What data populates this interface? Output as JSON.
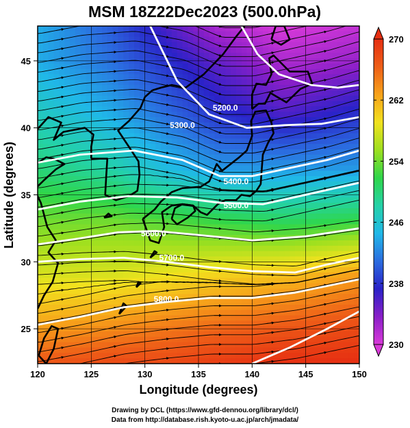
{
  "title": "MSM 18Z22Dec2023 (500.0hPa)",
  "credits": {
    "line1": "Drawing by DCL (https://www.gfd-dennou.org/library/dcl/)",
    "line2": "Data from http://database.rish.kyoto-u.ac.jp/arch/jmadata/"
  },
  "colors": {
    "scale": [
      "#d93ad9",
      "#8a1fc8",
      "#2a22c8",
      "#2b6de0",
      "#20b8e8",
      "#24d2a8",
      "#2fd64a",
      "#9ee01f",
      "#f2e21e",
      "#f7a21a",
      "#ee5f18",
      "#e62f12"
    ],
    "contour": "#ffffff",
    "streamline": "#000000",
    "coast": "#000000"
  },
  "chart_data": {
    "type": "heatmap",
    "title": "MSM 18Z22Dec2023 (500.0hPa)",
    "xlabel": "Longitude (degrees)",
    "ylabel": "Latitude  (degrees)",
    "xlim": [
      120,
      150
    ],
    "ylim": [
      22.4,
      47.6
    ],
    "xticks": [
      120,
      125,
      130,
      135,
      140,
      145,
      150
    ],
    "yticks": [
      25,
      30,
      35,
      40,
      45
    ],
    "colorbar": {
      "min": 230,
      "max": 270,
      "ticks": [
        230,
        238,
        246,
        254,
        262,
        270
      ]
    },
    "contours": [
      {
        "level": 5200,
        "label": "5200.0",
        "points": [
          [
            139.0,
            47.6
          ],
          [
            140.5,
            45.5
          ],
          [
            142.5,
            44.0
          ],
          [
            145.5,
            43.2
          ],
          [
            148.0,
            43.0
          ],
          [
            150.0,
            43.2
          ]
        ],
        "label_at": [
          137.5,
          41.5
        ]
      },
      {
        "level": 5300,
        "label": "5300.0",
        "points": [
          [
            130.5,
            47.6
          ],
          [
            133.0,
            43.5
          ],
          [
            136.0,
            41.0
          ],
          [
            139.5,
            40.0
          ],
          [
            143.0,
            40.2
          ],
          [
            146.5,
            40.3
          ],
          [
            150.0,
            40.8
          ]
        ],
        "label_at": [
          133.5,
          40.2
        ]
      },
      {
        "level": 5400,
        "label": "5400.0",
        "points": [
          [
            120.0,
            37.4
          ],
          [
            124.0,
            38.0
          ],
          [
            129.0,
            38.3
          ],
          [
            133.5,
            37.6
          ],
          [
            137.0,
            36.4
          ],
          [
            140.0,
            36.4
          ],
          [
            143.5,
            37.0
          ],
          [
            147.0,
            37.6
          ],
          [
            150.0,
            38.3
          ]
        ],
        "label_at": [
          138.5,
          36.0
        ]
      },
      {
        "level": 5500,
        "label": "5500.0",
        "points": [
          [
            120.0,
            33.9
          ],
          [
            124.0,
            34.5
          ],
          [
            128.5,
            34.9
          ],
          [
            133.0,
            34.8
          ],
          [
            137.0,
            34.4
          ],
          [
            141.0,
            34.3
          ],
          [
            145.0,
            35.0
          ],
          [
            150.0,
            35.9
          ]
        ],
        "label_at": [
          138.5,
          34.2
        ]
      },
      {
        "level": 5600,
        "label": "5600.0",
        "points": [
          [
            120.0,
            31.3
          ],
          [
            123.5,
            31.7
          ],
          [
            127.5,
            32.2
          ],
          [
            131.0,
            32.3
          ],
          [
            135.0,
            32.0
          ],
          [
            140.0,
            31.6
          ],
          [
            145.0,
            31.9
          ],
          [
            150.0,
            32.5
          ]
        ],
        "label_at": [
          130.8,
          32.1
        ]
      },
      {
        "level": 5700,
        "label": "5700.0",
        "points": [
          [
            120.0,
            30.0
          ],
          [
            124.0,
            30.2
          ],
          [
            128.0,
            30.3
          ],
          [
            132.0,
            30.0
          ],
          [
            136.0,
            29.6
          ],
          [
            140.0,
            29.3
          ],
          [
            144.0,
            29.2
          ],
          [
            147.0,
            29.8
          ],
          [
            150.0,
            30.3
          ]
        ],
        "label_at": [
          132.5,
          30.3
        ]
      },
      {
        "level": 5800,
        "label": "5800.0",
        "points": [
          [
            120.0,
            25.3
          ],
          [
            124.0,
            25.9
          ],
          [
            128.0,
            26.6
          ],
          [
            132.0,
            27.0
          ],
          [
            136.0,
            27.3
          ],
          [
            140.0,
            27.3
          ],
          [
            144.0,
            27.7
          ],
          [
            150.0,
            28.7
          ]
        ],
        "label_at": [
          132.0,
          27.2
        ]
      },
      {
        "level": 5900,
        "label": "",
        "points": [
          [
            140.0,
            22.4
          ],
          [
            143.5,
            23.6
          ],
          [
            147.0,
            25.0
          ],
          [
            150.0,
            26.3
          ]
        ],
        "label_at": null
      }
    ],
    "temperature_field": [
      {
        "lat": 47.6,
        "lon_values": [
          [
            120,
            244
          ],
          [
            127,
            240
          ],
          [
            132,
            236
          ],
          [
            137,
            232
          ],
          [
            143,
            230
          ],
          [
            150,
            231
          ]
        ]
      },
      {
        "lat": 45.0,
        "lon_values": [
          [
            120,
            244
          ],
          [
            127,
            241
          ],
          [
            132,
            238
          ],
          [
            137,
            235
          ],
          [
            143,
            232
          ],
          [
            150,
            233
          ]
        ]
      },
      {
        "lat": 41.0,
        "lon_values": [
          [
            120,
            247
          ],
          [
            127,
            244
          ],
          [
            132,
            241
          ],
          [
            137,
            238
          ],
          [
            143,
            236
          ],
          [
            150,
            238
          ]
        ]
      },
      {
        "lat": 37.0,
        "lon_values": [
          [
            120,
            250
          ],
          [
            127,
            248
          ],
          [
            132,
            245
          ],
          [
            137,
            243
          ],
          [
            143,
            243
          ],
          [
            150,
            243
          ]
        ]
      },
      {
        "lat": 33.0,
        "lon_values": [
          [
            120,
            254
          ],
          [
            127,
            254
          ],
          [
            132,
            253
          ],
          [
            137,
            252
          ],
          [
            143,
            251
          ],
          [
            150,
            252
          ]
        ]
      },
      {
        "lat": 29.0,
        "lon_values": [
          [
            120,
            258
          ],
          [
            127,
            258
          ],
          [
            132,
            259
          ],
          [
            137,
            260
          ],
          [
            143,
            261
          ],
          [
            150,
            263
          ]
        ]
      },
      {
        "lat": 25.0,
        "lon_values": [
          [
            120,
            263
          ],
          [
            127,
            264
          ],
          [
            132,
            265
          ],
          [
            137,
            266
          ],
          [
            143,
            267
          ],
          [
            150,
            268
          ]
        ]
      },
      {
        "lat": 22.4,
        "lon_values": [
          [
            120,
            267
          ],
          [
            127,
            268
          ],
          [
            132,
            268
          ],
          [
            137,
            269
          ],
          [
            143,
            270
          ],
          [
            150,
            270
          ]
        ]
      }
    ],
    "coastlines": [
      {
        "name": "kyushu-honshu",
        "points": [
          [
            129.8,
            33.2
          ],
          [
            130.5,
            31.6
          ],
          [
            131.3,
            31.4
          ],
          [
            131.8,
            32.6
          ],
          [
            131.6,
            33.7
          ],
          [
            132.5,
            34.2
          ],
          [
            133.5,
            34.3
          ],
          [
            134.5,
            34.2
          ],
          [
            135.2,
            33.7
          ],
          [
            135.8,
            33.5
          ],
          [
            136.8,
            34.3
          ],
          [
            137.5,
            34.6
          ],
          [
            138.5,
            34.6
          ],
          [
            139.0,
            35.0
          ],
          [
            139.8,
            34.9
          ],
          [
            140.4,
            35.3
          ],
          [
            140.8,
            35.8
          ],
          [
            140.9,
            36.9
          ],
          [
            141.0,
            38.0
          ],
          [
            141.5,
            38.9
          ],
          [
            142.0,
            39.6
          ],
          [
            141.8,
            40.4
          ],
          [
            141.3,
            41.3
          ],
          [
            140.3,
            41.2
          ],
          [
            139.9,
            40.5
          ],
          [
            140.0,
            39.4
          ],
          [
            139.5,
            38.3
          ],
          [
            138.8,
            37.8
          ],
          [
            137.2,
            36.8
          ],
          [
            136.7,
            37.3
          ],
          [
            136.0,
            36.0
          ],
          [
            135.2,
            35.6
          ],
          [
            133.5,
            35.5
          ],
          [
            132.5,
            35.2
          ],
          [
            131.5,
            34.5
          ],
          [
            130.9,
            33.9
          ],
          [
            129.8,
            33.2
          ]
        ]
      },
      {
        "name": "shikoku",
        "points": [
          [
            132.5,
            33.2
          ],
          [
            133.0,
            32.8
          ],
          [
            134.0,
            33.3
          ],
          [
            134.7,
            33.8
          ],
          [
            134.5,
            34.2
          ],
          [
            133.5,
            34.3
          ],
          [
            132.8,
            34.0
          ],
          [
            132.5,
            33.2
          ]
        ]
      },
      {
        "name": "hokkaido",
        "points": [
          [
            140.0,
            41.4
          ],
          [
            140.6,
            41.8
          ],
          [
            141.2,
            41.8
          ],
          [
            141.7,
            42.6
          ],
          [
            143.2,
            41.9
          ],
          [
            144.5,
            42.9
          ],
          [
            145.6,
            43.3
          ],
          [
            145.2,
            44.2
          ],
          [
            143.5,
            44.2
          ],
          [
            142.0,
            45.4
          ],
          [
            141.6,
            45.2
          ],
          [
            141.8,
            44.0
          ],
          [
            141.3,
            43.2
          ],
          [
            140.4,
            43.3
          ],
          [
            140.0,
            42.5
          ],
          [
            140.0,
            41.4
          ]
        ]
      },
      {
        "name": "sakhalin",
        "points": [
          [
            141.8,
            46.6
          ],
          [
            142.7,
            46.2
          ],
          [
            143.5,
            46.6
          ],
          [
            143.0,
            47.6
          ],
          [
            142.2,
            47.6
          ],
          [
            141.8,
            46.6
          ]
        ]
      },
      {
        "name": "korea",
        "points": [
          [
            125.0,
            37.7
          ],
          [
            126.5,
            37.7
          ],
          [
            126.4,
            36.5
          ],
          [
            126.3,
            35.0
          ],
          [
            127.3,
            34.6
          ],
          [
            128.5,
            34.9
          ],
          [
            129.3,
            35.3
          ],
          [
            129.5,
            36.5
          ],
          [
            129.4,
            37.5
          ],
          [
            128.5,
            38.6
          ],
          [
            127.5,
            39.8
          ],
          [
            128.5,
            40.5
          ],
          [
            129.6,
            41.5
          ],
          [
            130.0,
            42.3
          ],
          [
            130.7,
            42.8
          ]
        ]
      },
      {
        "name": "asia-coast",
        "points": [
          [
            120.0,
            26.5
          ],
          [
            120.6,
            27.5
          ],
          [
            121.4,
            28.5
          ],
          [
            121.9,
            29.9
          ],
          [
            121.0,
            30.7
          ],
          [
            121.7,
            31.6
          ],
          [
            120.9,
            32.6
          ],
          [
            120.3,
            34.4
          ],
          [
            119.7,
            35.4
          ],
          [
            120.6,
            36.1
          ],
          [
            121.7,
            36.9
          ],
          [
            122.5,
            37.3
          ],
          [
            121.5,
            37.7
          ],
          [
            120.8,
            37.8
          ],
          [
            119.5,
            37.1
          ],
          [
            118.5,
            38.1
          ],
          [
            119.3,
            39.3
          ],
          [
            121.0,
            40.8
          ],
          [
            122.2,
            40.4
          ],
          [
            121.5,
            39.1
          ],
          [
            122.4,
            39.7
          ],
          [
            124.4,
            40.0
          ],
          [
            125.2,
            39.5
          ],
          [
            125.0,
            38.6
          ],
          [
            125.0,
            37.7
          ]
        ]
      },
      {
        "name": "primorye",
        "points": [
          [
            130.7,
            42.8
          ],
          [
            131.5,
            43.0
          ],
          [
            132.5,
            43.2
          ],
          [
            133.8,
            43.0
          ],
          [
            135.5,
            44.0
          ],
          [
            137.3,
            45.5
          ],
          [
            138.5,
            46.8
          ],
          [
            139.3,
            47.6
          ]
        ]
      },
      {
        "name": "taiwan",
        "points": [
          [
            120.1,
            23.0
          ],
          [
            120.8,
            22.4
          ],
          [
            121.5,
            23.5
          ],
          [
            121.9,
            25.0
          ],
          [
            121.3,
            25.2
          ],
          [
            120.6,
            24.3
          ],
          [
            120.1,
            23.0
          ]
        ]
      },
      {
        "name": "okinawa",
        "points": [
          [
            127.6,
            26.1
          ],
          [
            128.3,
            26.7
          ],
          [
            128.0,
            26.9
          ],
          [
            127.6,
            26.1
          ]
        ]
      },
      {
        "name": "amami",
        "points": [
          [
            129.2,
            28.1
          ],
          [
            129.6,
            28.4
          ],
          [
            129.4,
            28.5
          ],
          [
            129.2,
            28.1
          ]
        ]
      },
      {
        "name": "tanegashima",
        "points": [
          [
            130.5,
            30.3
          ],
          [
            131.1,
            30.7
          ],
          [
            130.9,
            30.8
          ],
          [
            130.5,
            30.3
          ]
        ]
      },
      {
        "name": "jeju",
        "points": [
          [
            126.2,
            33.3
          ],
          [
            126.9,
            33.4
          ],
          [
            126.6,
            33.6
          ],
          [
            126.2,
            33.3
          ]
        ]
      }
    ]
  }
}
